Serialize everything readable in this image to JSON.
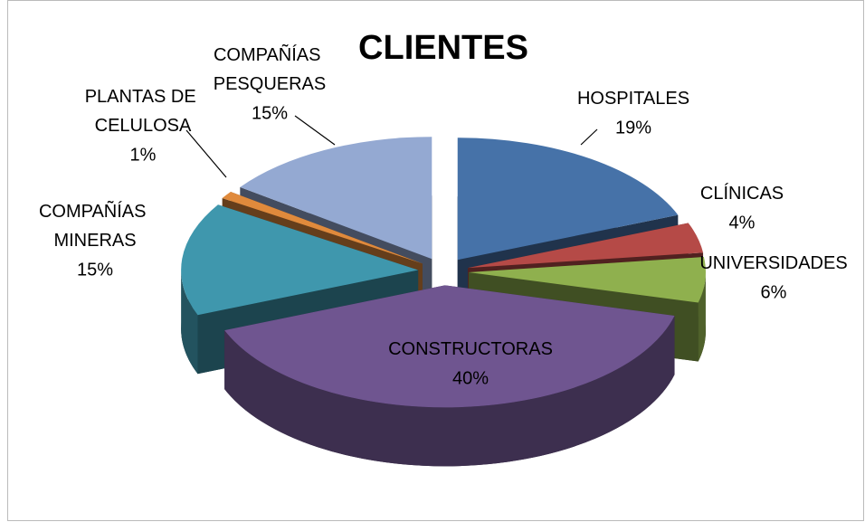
{
  "chart_data": {
    "type": "pie",
    "title": "CLIENTES",
    "categories": [
      "HOSPITALES",
      "CLÍNICAS",
      "UNIVERSIDADES",
      "CONSTRUCTORAS",
      "COMPAÑÍAS MINERAS",
      "PLANTAS DE CELULOSA",
      "COMPAÑÍAS PESQUERAS"
    ],
    "values": [
      19,
      4,
      6,
      40,
      15,
      1,
      15
    ],
    "value_labels": [
      "19%",
      "4%",
      "6%",
      "40%",
      "15%",
      "1%",
      "15%"
    ],
    "colors": [
      "#4672a8",
      "#b54a47",
      "#8fb04e",
      "#6f5590",
      "#3f97ad",
      "#e08a3c",
      "#94a9d2"
    ]
  }
}
